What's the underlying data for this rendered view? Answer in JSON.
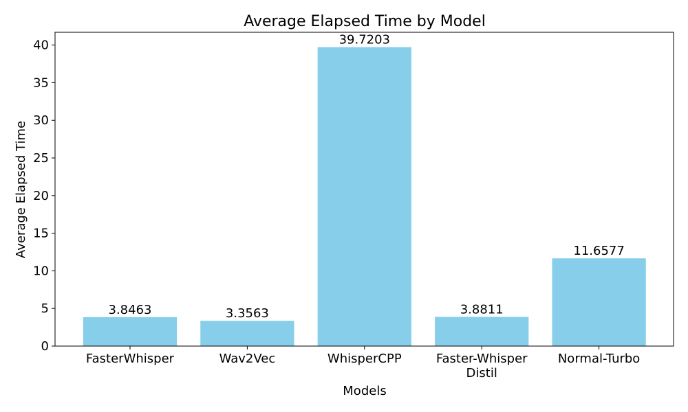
{
  "chart_data": {
    "type": "bar",
    "title": "Average Elapsed Time by Model",
    "xlabel": "Models",
    "ylabel": "Average Elapsed Time",
    "categories": [
      [
        "FasterWhisper"
      ],
      [
        "Wav2Vec"
      ],
      [
        "WhisperCPP"
      ],
      [
        "Faster-Whisper",
        "Distil"
      ],
      [
        "Normal-Turbo"
      ]
    ],
    "values": [
      3.8463,
      3.3563,
      39.7203,
      3.8811,
      11.6577
    ],
    "value_labels": [
      "3.8463",
      "3.3563",
      "39.7203",
      "3.8811",
      "11.6577"
    ],
    "ylim": [
      0,
      41.7
    ],
    "yticks": [
      0,
      5,
      10,
      15,
      20,
      25,
      30,
      35,
      40
    ],
    "grid": false,
    "legend": "none",
    "bar_color": "#87CEEB"
  }
}
